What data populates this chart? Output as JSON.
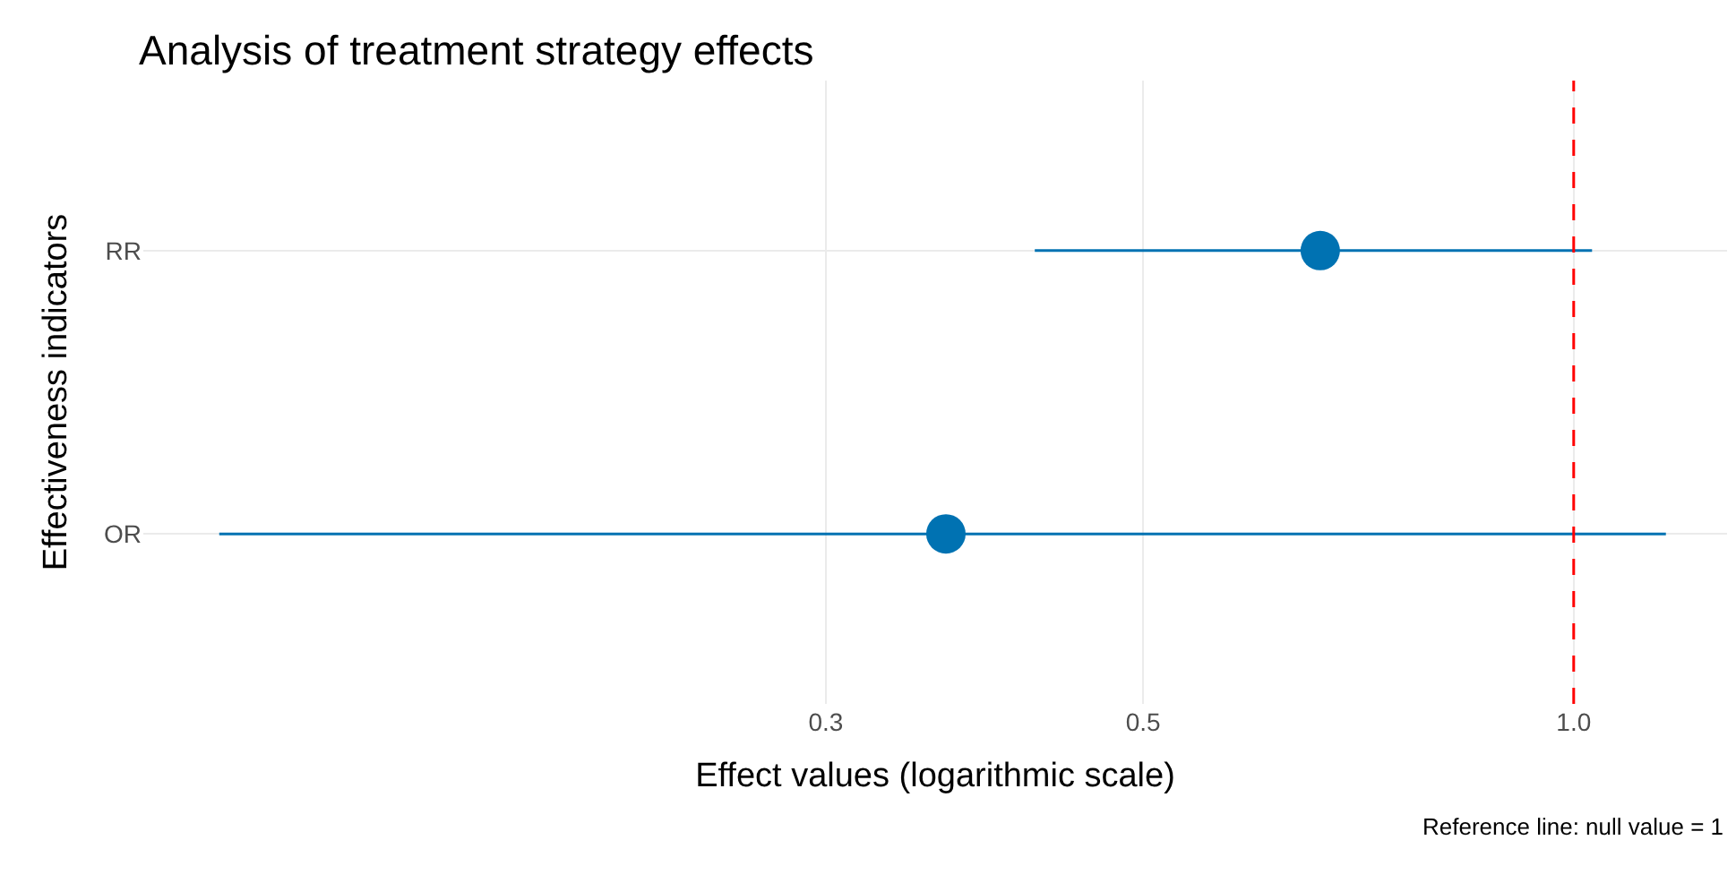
{
  "chart_data": {
    "type": "scatter",
    "orientation": "horizontal",
    "title": "Analysis of treatment strategy effects",
    "xlabel": "Effect values (logarithmic scale)",
    "ylabel": "Effectiveness indicators",
    "categories": [
      "RR",
      "OR"
    ],
    "series": [
      {
        "color": "#0072b2",
        "values": [
          0.665,
          0.364
        ],
        "errors": [
          [
            0.42,
            1.03
          ],
          [
            0.113,
            1.16
          ]
        ]
      }
    ],
    "log": "x",
    "xlim": [
      0.1,
      1.28
    ],
    "xticks": [
      0.3,
      0.5,
      {
        "value": 1,
        "label": "1.0"
      }
    ],
    "ref_lines": [
      {
        "axis": "x",
        "value": 1,
        "color": "#ff0000",
        "line_style": "dashed"
      }
    ],
    "annotations": [
      "Reference line: null value = 1"
    ],
    "grid": true,
    "marker": "circle"
  }
}
